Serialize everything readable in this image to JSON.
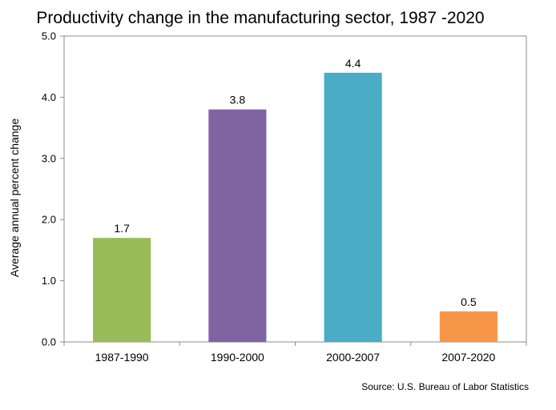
{
  "chart_data": {
    "type": "bar",
    "title": "Productivity change in the manufacturing sector, 1987 -2020",
    "ylabel": "Average annual percent change",
    "xlabel": "",
    "categories": [
      "1987-1990",
      "1990-2000",
      "2000-2007",
      "2007-2020"
    ],
    "values": [
      1.7,
      3.8,
      4.4,
      0.5
    ],
    "data_labels": [
      "1.7",
      "3.8",
      "4.4",
      "0.5"
    ],
    "colors": [
      "#9bbb59",
      "#8064a2",
      "#4bacc6",
      "#f79646"
    ],
    "ylim": [
      0,
      5
    ],
    "yticks": [
      0,
      1,
      2,
      3,
      4,
      5
    ],
    "ytick_labels": [
      "0.0",
      "1.0",
      "2.0",
      "3.0",
      "4.0",
      "5.0"
    ],
    "grid": false,
    "legend": "none",
    "source": "Source: U.S. Bureau of Labor Statistics"
  }
}
